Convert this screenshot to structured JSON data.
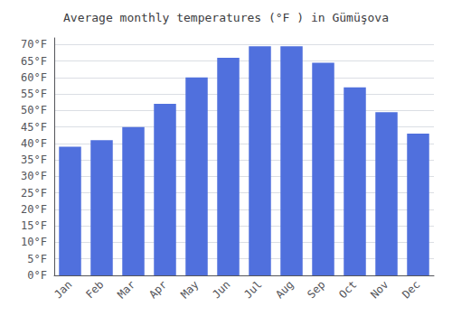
{
  "chart_data": {
    "type": "bar",
    "title": "Average monthly temperatures (°F ) in Gümüşova",
    "categories": [
      "Jan",
      "Feb",
      "Mar",
      "Apr",
      "May",
      "Jun",
      "Jul",
      "Aug",
      "Sep",
      "Oct",
      "Nov",
      "Dec"
    ],
    "values": [
      39,
      41,
      45,
      52,
      60,
      66,
      69.5,
      69.5,
      64.5,
      57,
      49.5,
      43
    ],
    "ylim": [
      0,
      72
    ],
    "yticks": [
      {
        "value": 0,
        "label": "0°F"
      },
      {
        "value": 5,
        "label": "5°F"
      },
      {
        "value": 10,
        "label": "10°F"
      },
      {
        "value": 15,
        "label": "15°F"
      },
      {
        "value": 20,
        "label": "20°F"
      },
      {
        "value": 25,
        "label": "25°F"
      },
      {
        "value": 30,
        "label": "30°F"
      },
      {
        "value": 35,
        "label": "35°F"
      },
      {
        "value": 40,
        "label": "40°F"
      },
      {
        "value": 45,
        "label": "45°F"
      },
      {
        "value": 50,
        "label": "50°F"
      },
      {
        "value": 55,
        "label": "55°F"
      },
      {
        "value": 60,
        "label": "60°F"
      },
      {
        "value": 65,
        "label": "65°F"
      },
      {
        "value": 70,
        "label": "70°F"
      }
    ],
    "grid": true
  }
}
